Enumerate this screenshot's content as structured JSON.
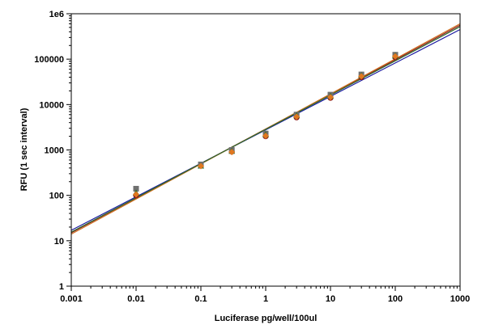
{
  "chart_data": {
    "type": "scatter",
    "xlabel": "Luciferase pg/well/100ul",
    "ylabel": "RFU (1 sec interval)",
    "x_scale": "log",
    "y_scale": "log",
    "xlim": [
      0.001,
      1000
    ],
    "ylim": [
      1,
      1000000
    ],
    "grid": false,
    "x_ticks": [
      {
        "value": 0.001,
        "label": "0.001"
      },
      {
        "value": 0.01,
        "label": "0.01"
      },
      {
        "value": 0.1,
        "label": "0.1"
      },
      {
        "value": 1,
        "label": "1"
      },
      {
        "value": 10,
        "label": "10"
      },
      {
        "value": 100,
        "label": "100"
      },
      {
        "value": 1000,
        "label": "1000"
      }
    ],
    "y_ticks": [
      {
        "value": 1,
        "label": "1"
      },
      {
        "value": 10,
        "label": "10"
      },
      {
        "value": 100,
        "label": "100"
      },
      {
        "value": 1000,
        "label": "1000"
      },
      {
        "value": 10000,
        "label": "10000"
      },
      {
        "value": 100000,
        "label": "100000"
      },
      {
        "value": 1000000,
        "label": "1e6"
      }
    ],
    "series": [
      {
        "marker": "circle",
        "color": "#8b1a1a",
        "x": [
          0.01,
          0.1,
          0.3,
          1,
          3,
          10,
          30,
          100
        ],
        "y": [
          100,
          460,
          920,
          2000,
          5200,
          14000,
          40000,
          110000
        ]
      },
      {
        "marker": "square",
        "color": "#707070",
        "x": [
          0.01,
          0.1,
          0.3,
          1,
          3,
          10,
          30,
          100
        ],
        "y": [
          140,
          480,
          1000,
          2300,
          6000,
          16500,
          46000,
          125000
        ]
      },
      {
        "marker": "triangle",
        "color": "#2e6b2e",
        "x": [
          0.01,
          0.1,
          0.3,
          1,
          3,
          10,
          30,
          100
        ],
        "y": [
          115,
          450,
          950,
          2200,
          5800,
          15500,
          44000,
          120000
        ]
      },
      {
        "marker": "diamond",
        "color": "#e07820",
        "x": [
          0.01,
          0.1,
          0.3,
          1,
          3,
          10,
          30,
          100
        ],
        "y": [
          105,
          440,
          900,
          2050,
          5400,
          14500,
          42000,
          115000
        ]
      }
    ],
    "fit_lines": [
      {
        "color": "#1a1aa0",
        "x": [
          0.001,
          1000
        ],
        "y": [
          17,
          450000
        ]
      },
      {
        "color": "#8b1a1a",
        "x": [
          0.001,
          1000
        ],
        "y": [
          15,
          560000
        ]
      },
      {
        "color": "#d07020",
        "x": [
          0.001,
          1000
        ],
        "y": [
          14,
          600000
        ]
      },
      {
        "color": "#2e6b2e",
        "x": [
          0.001,
          1000
        ],
        "y": [
          15.5,
          520000
        ]
      }
    ]
  }
}
